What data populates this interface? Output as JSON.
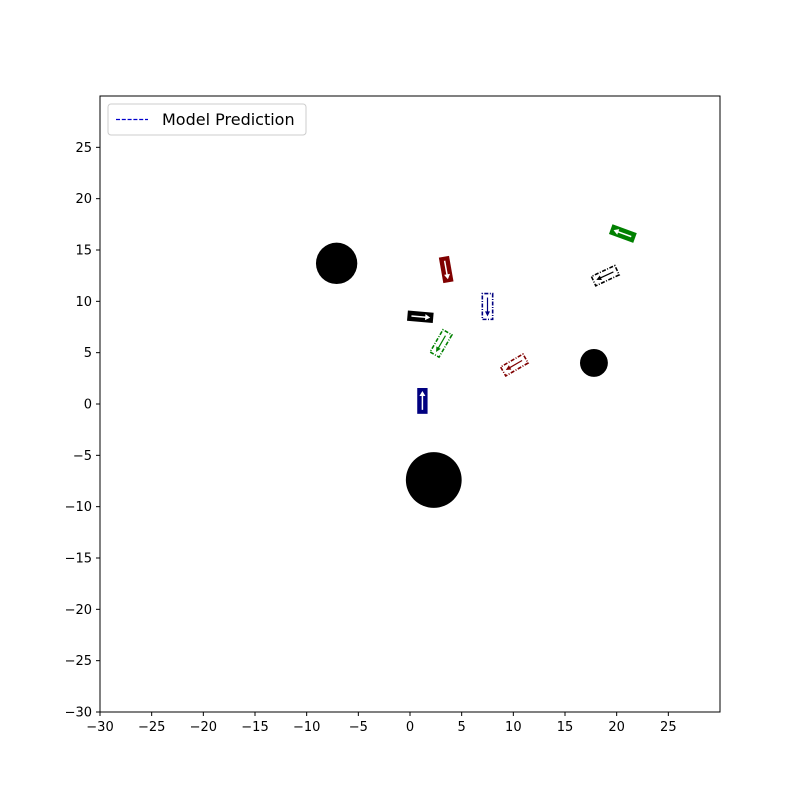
{
  "chart_data": {
    "type": "scatter",
    "title": "",
    "xlabel": "",
    "ylabel": "",
    "xlim": [
      -30,
      30
    ],
    "ylim": [
      -30,
      30
    ],
    "xticks": [
      -30,
      -25,
      -20,
      -15,
      -10,
      -5,
      0,
      5,
      10,
      15,
      20,
      25
    ],
    "yticks": [
      -30,
      -25,
      -20,
      -15,
      -10,
      -5,
      0,
      5,
      10,
      15,
      20,
      25
    ],
    "xtick_labels": [
      "−30",
      "−25",
      "−20",
      "−15",
      "−10",
      "−5",
      "0",
      "5",
      "10",
      "15",
      "20",
      "25"
    ],
    "ytick_labels": [
      "−30",
      "−25",
      "−20",
      "−15",
      "−10",
      "−5",
      "0",
      "5",
      "10",
      "15",
      "20",
      "25"
    ],
    "grid": false,
    "legend": {
      "position": "top-left",
      "entries": [
        {
          "label": "Model Prediction",
          "color": "#0000cc",
          "style": "dashed"
        }
      ]
    },
    "obstacles": [
      {
        "x": -7.1,
        "y": 13.7,
        "radius": 2.0,
        "color": "#000000"
      },
      {
        "x": 2.3,
        "y": -7.4,
        "radius": 2.7,
        "color": "#000000"
      },
      {
        "x": 17.8,
        "y": 4.0,
        "radius": 1.35,
        "color": "#000000"
      }
    ],
    "vehicles": [
      {
        "agent": "blue",
        "kind": "actual",
        "x": 1.2,
        "y": 0.3,
        "heading_deg": 90,
        "color": "#000080"
      },
      {
        "agent": "blue",
        "kind": "predicted",
        "x": 7.5,
        "y": 9.5,
        "heading_deg": -90,
        "color": "#000080"
      },
      {
        "agent": "black",
        "kind": "actual",
        "x": 1.0,
        "y": 8.5,
        "heading_deg": -5,
        "color": "#000000"
      },
      {
        "agent": "black",
        "kind": "predicted",
        "x": 18.9,
        "y": 12.5,
        "heading_deg": 205,
        "color": "#000000"
      },
      {
        "agent": "red",
        "kind": "actual",
        "x": 3.5,
        "y": 13.1,
        "heading_deg": -80,
        "color": "#800000"
      },
      {
        "agent": "red",
        "kind": "predicted",
        "x": 10.1,
        "y": 3.8,
        "heading_deg": 210,
        "color": "#800000"
      },
      {
        "agent": "green",
        "kind": "actual",
        "x": 20.6,
        "y": 16.6,
        "heading_deg": 160,
        "color": "#008000"
      },
      {
        "agent": "green",
        "kind": "predicted",
        "x": 3.0,
        "y": 5.9,
        "heading_deg": 240,
        "color": "#008000"
      }
    ],
    "vehicle_size": {
      "length": 2.5,
      "width": 1.0
    }
  }
}
